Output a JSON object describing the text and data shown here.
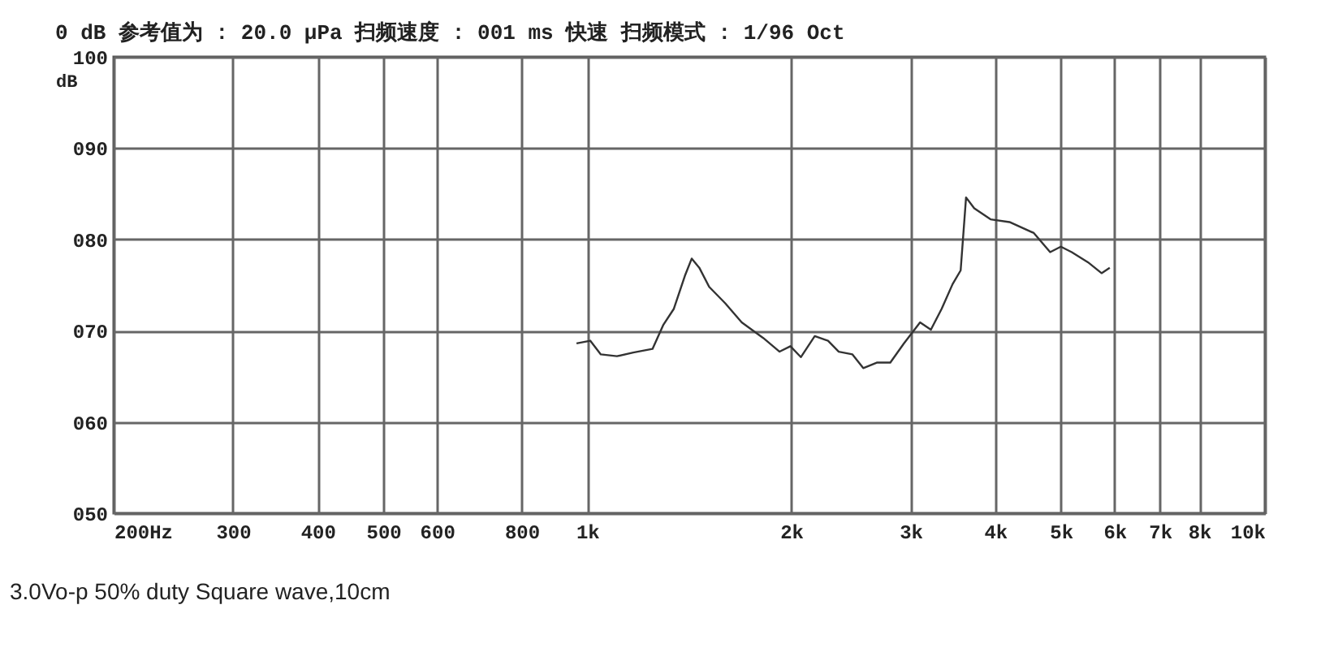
{
  "chart_data": {
    "type": "line",
    "title": "0 dB 参考值为 : 20.0 μPa     扫频速度 : 001 ms 快速   扫频模式 : 1/96   Oct",
    "ylabel": "dB",
    "annotations": [
      "3.0Vo-p 50% duty Square wave,10cm"
    ],
    "log": "x",
    "grid": true,
    "xlim": [
      200,
      10000
    ],
    "ylim": [
      50,
      100
    ],
    "xticks": [
      {
        "value": 200,
        "label": "200Hz"
      },
      300,
      400,
      500,
      600,
      800,
      {
        "value": 1000,
        "label": "1k"
      },
      {
        "value": 2000,
        "label": "2k"
      },
      {
        "value": 3000,
        "label": "3k"
      },
      {
        "value": 4000,
        "label": "4k"
      },
      {
        "value": 5000,
        "label": "5k"
      },
      {
        "value": 6000,
        "label": "6k"
      },
      {
        "value": 7000,
        "label": "7k"
      },
      {
        "value": 8000,
        "label": "8k"
      },
      {
        "value": 10000,
        "label": "10k"
      }
    ],
    "yticks": [
      {
        "value": 50,
        "label": "050"
      },
      {
        "value": 60,
        "label": "060"
      },
      {
        "value": 70,
        "label": "070"
      },
      {
        "value": 80,
        "label": "080"
      },
      {
        "value": 90,
        "label": "090"
      },
      100
    ],
    "x": [
      964,
      1010,
      1047,
      1106,
      1169,
      1248,
      1294,
      1342,
      1393,
      1426,
      1463,
      1513,
      1598,
      1690,
      1818,
      1922,
      1994,
      2066,
      2166,
      2266,
      2350,
      2462,
      2554,
      2674,
      2800,
      2932,
      3098,
      3214,
      3334,
      3460,
      3556,
      3622,
      3724,
      3936,
      4198,
      4560,
      4820,
      4998,
      5186,
      5480,
      5740,
      5902
    ],
    "series": [
      {
        "color": "#333333",
        "values": [
          68.6,
          68.9,
          67.4,
          67.2,
          67.6,
          68.0,
          70.6,
          72.4,
          76.0,
          77.9,
          76.9,
          74.8,
          73.0,
          70.9,
          69.2,
          67.7,
          68.3,
          67.1,
          69.4,
          68.9,
          67.7,
          67.4,
          65.9,
          66.5,
          66.5,
          68.6,
          70.9,
          70.1,
          72.4,
          75.1,
          76.6,
          84.6,
          83.4,
          82.2,
          81.9,
          80.7,
          78.6,
          79.2,
          78.6,
          77.5,
          76.3,
          76.9
        ]
      }
    ]
  }
}
